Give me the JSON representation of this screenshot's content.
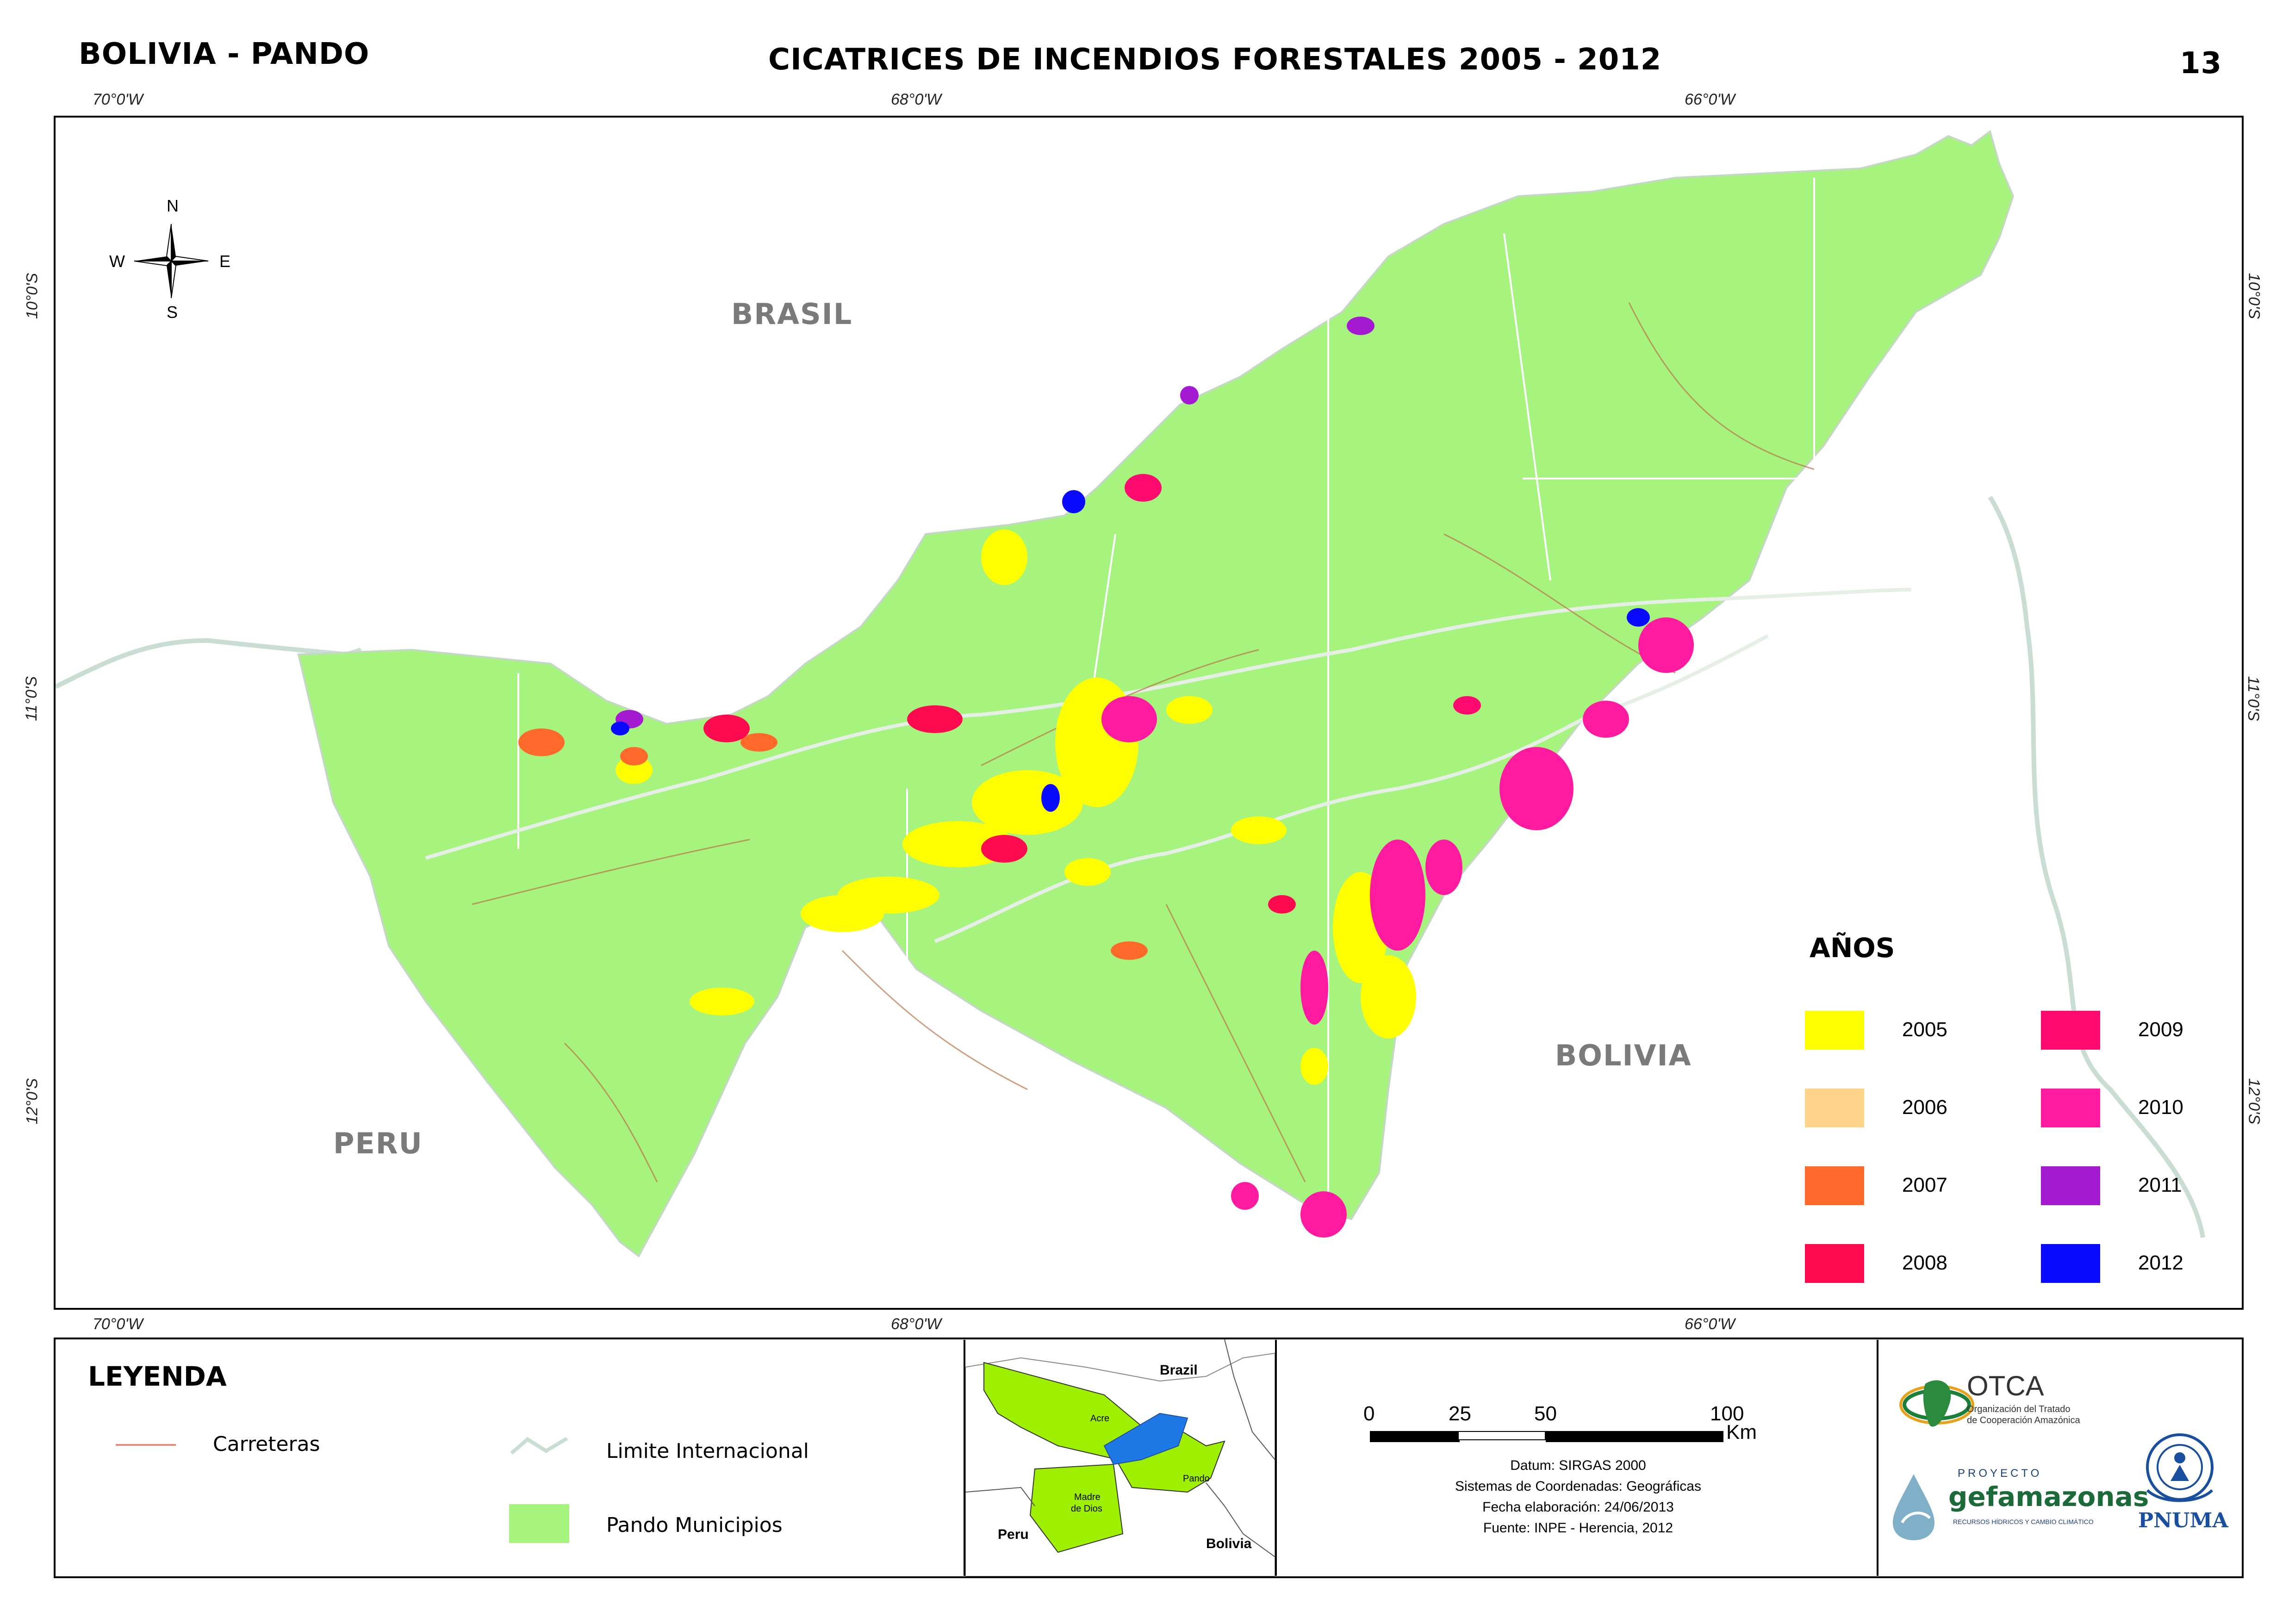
{
  "header": {
    "region": "BOLIVIA - PANDO",
    "title": "CICATRICES DE INCENDIOS FORESTALES 2005 - 2012",
    "sheet_number": "13"
  },
  "graticule": {
    "lon_labels": [
      "70°0'W",
      "68°0'W",
      "66°0'W"
    ],
    "lat_labels": [
      "10°0'S",
      "11°0'S",
      "12°0'S"
    ]
  },
  "compass": {
    "n": "N",
    "s": "S",
    "e": "E",
    "w": "W"
  },
  "map_labels": {
    "brasil": "BRASIL",
    "peru": "PERU",
    "bolivia": "BOLIVIA"
  },
  "years_legend": {
    "title": "AÑOS",
    "items": [
      {
        "year": "2005",
        "color": "#ffff00"
      },
      {
        "year": "2006",
        "color": "#ffd38a"
      },
      {
        "year": "2007",
        "color": "#ff6a2a"
      },
      {
        "year": "2008",
        "color": "#ff0a4e"
      },
      {
        "year": "2009",
        "color": "#ff0a6e"
      },
      {
        "year": "2010",
        "color": "#ff1aa0"
      },
      {
        "year": "2011",
        "color": "#a41ad0"
      },
      {
        "year": "2012",
        "color": "#0a0aff"
      }
    ]
  },
  "legend": {
    "title": "LEYENDA",
    "roads": "Carreteras",
    "border": "Limite Internacional",
    "municipios": "Pando Municipios"
  },
  "inset_map": {
    "brazil": "Brazil",
    "acre": "Acre",
    "pando": "Pando",
    "madre_de_dios_1": "Madre",
    "madre_de_dios_2": "de Dios",
    "peru": "Peru",
    "bolivia": "Bolivia"
  },
  "scale_bar": {
    "ticks": [
      "0",
      "25",
      "50",
      "100"
    ],
    "unit": "Km"
  },
  "metadata_text": {
    "datum": "Datum: SIRGAS 2000",
    "coords": "Sistemas de Coordenadas: Geográficas",
    "date": "Fecha elaboración: 24/06/2013",
    "source": "Fuente: INPE - Herencia, 2012"
  },
  "logos": {
    "otca_name": "OTCA",
    "otca_sub1": "Organización del Tratado",
    "otca_sub2": "de Cooperación Amazónica",
    "proyecto": "PROYECTO",
    "gef": "gefamazonas",
    "gef_sub": "RECURSOS HÍDRICOS Y CAMBIO CLIMÁTICO",
    "pnuma": "PNUMA"
  },
  "colors": {
    "pando": "#a6f37e",
    "inset_country": "#9ff000",
    "inset_river": "#1e78e6",
    "roads": "#b9764a",
    "rivers": "#e6efe6",
    "border_line": "#c9ddd3"
  }
}
